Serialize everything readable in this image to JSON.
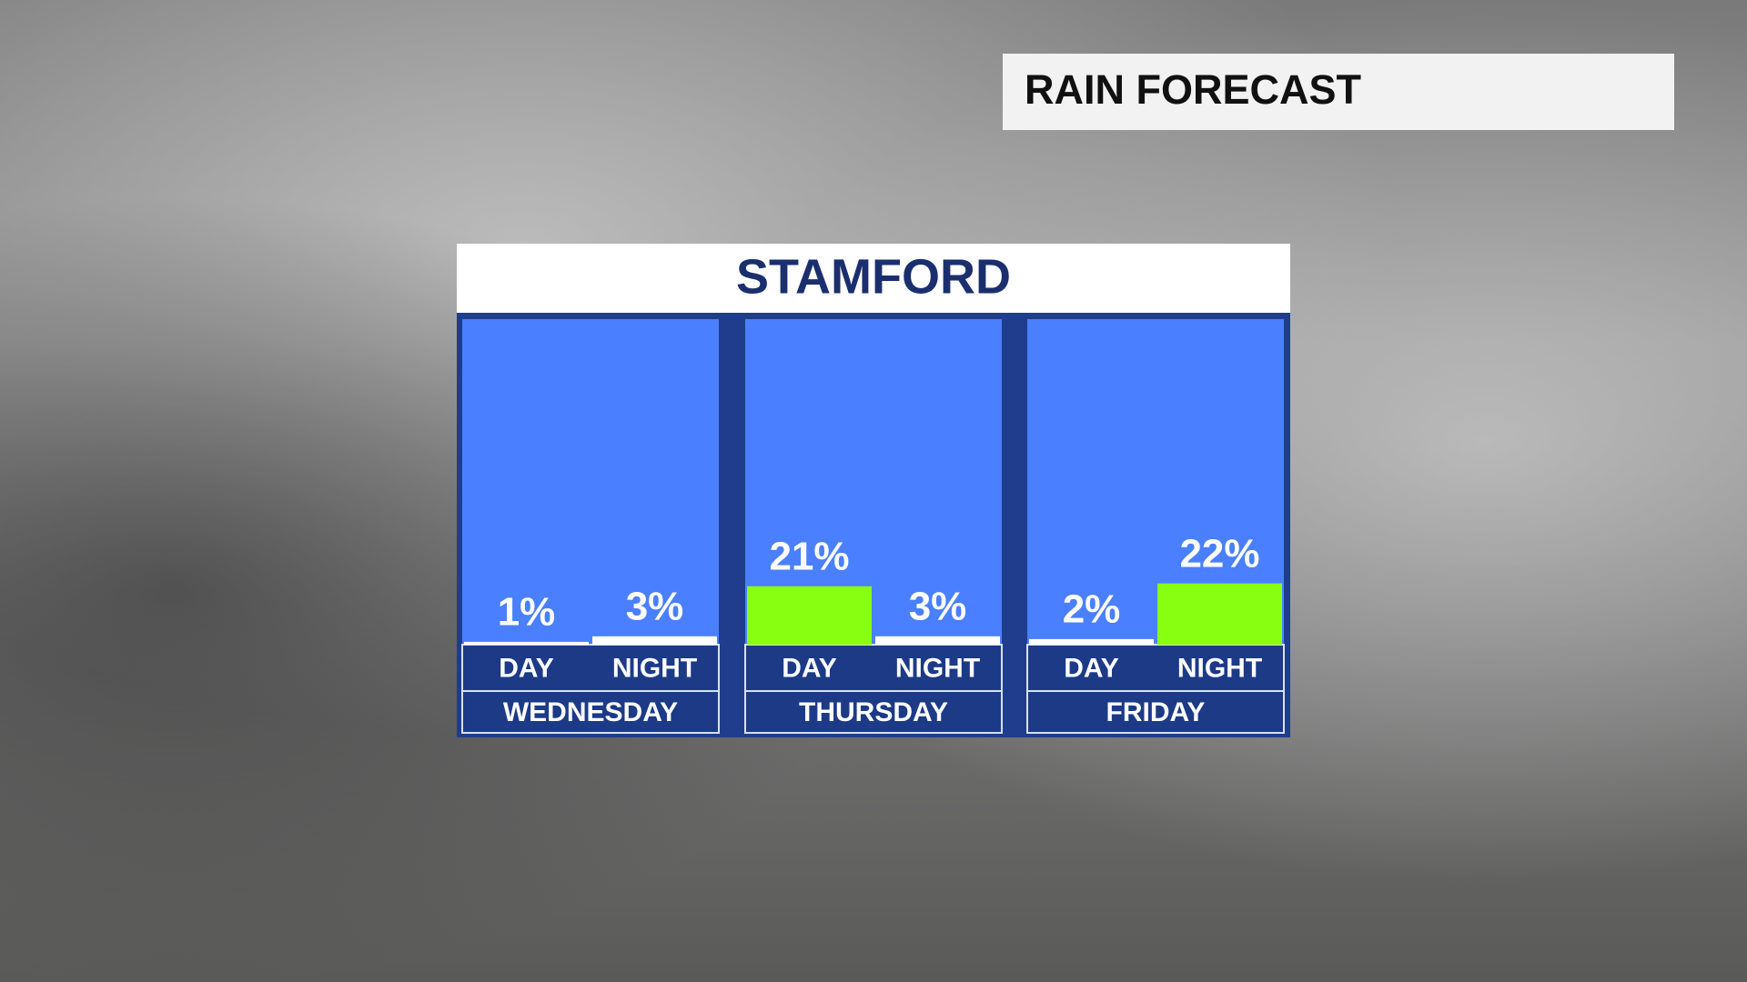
{
  "header": "RAIN FORECAST",
  "chart_data": {
    "type": "bar",
    "title": "STAMFORD",
    "ylim": [
      0,
      100
    ],
    "groups": [
      {
        "name": "WEDNESDAY",
        "categories": [
          "DAY",
          "NIGHT"
        ],
        "values": [
          1,
          3
        ],
        "value_labels": [
          "1%",
          "3%"
        ],
        "colors": [
          "#ffffff",
          "#ffffff"
        ]
      },
      {
        "name": "THURSDAY",
        "categories": [
          "DAY",
          "NIGHT"
        ],
        "values": [
          21,
          3
        ],
        "value_labels": [
          "21%",
          "3%"
        ],
        "colors": [
          "#88ff11",
          "#ffffff"
        ]
      },
      {
        "name": "FRIDAY",
        "categories": [
          "DAY",
          "NIGHT"
        ],
        "values": [
          2,
          22
        ],
        "value_labels": [
          "2%",
          "22%"
        ],
        "colors": [
          "#ffffff",
          "#88ff11"
        ]
      }
    ]
  }
}
